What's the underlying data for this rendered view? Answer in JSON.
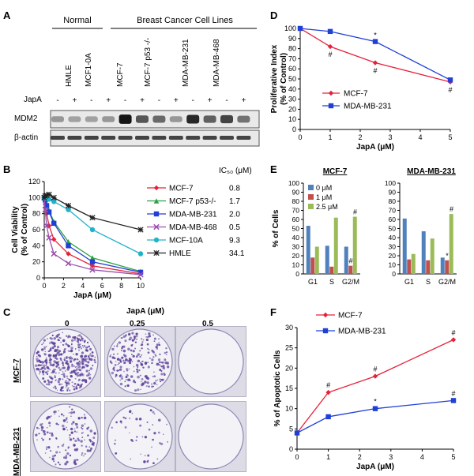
{
  "panels": {
    "A": {
      "label": "A",
      "group_normal": "Normal",
      "group_cancer": "Breast Cancer Cell Lines",
      "cell_lines": [
        "HMLE",
        "MCF1-0A",
        "MCF-7",
        "MCF-7 p53 -/-",
        "MDA-MB-231",
        "MDA-MB-468"
      ],
      "treatment_label": "JapA",
      "treatment_signs": [
        "-",
        "+",
        "-",
        "+",
        "-",
        "+",
        "-",
        "+",
        "-",
        "+",
        "-",
        "+"
      ],
      "blot_rows": [
        "MDM2",
        "β-actin"
      ],
      "mdm2_band_intensity": [
        0.25,
        0.2,
        0.2,
        0.25,
        0.95,
        0.6,
        0.5,
        0.25,
        0.85,
        0.55,
        0.7,
        0.45
      ],
      "actin_band_intensity": [
        0.7,
        0.7,
        0.7,
        0.7,
        0.7,
        0.7,
        0.7,
        0.7,
        0.7,
        0.7,
        0.7,
        0.7
      ]
    },
    "B": {
      "label": "B",
      "ic50_header": "IC₅₀ (μM)"
    },
    "C": {
      "label": "C",
      "dose_title": "JapA (μM)",
      "doses": [
        "0",
        "0.25",
        "0.5"
      ],
      "rows": [
        "MCF-7",
        "MDA-MB-231"
      ],
      "colony_density": [
        [
          1.0,
          0.55,
          0.0
        ],
        [
          0.35,
          0.12,
          0.0
        ]
      ]
    },
    "D": {
      "label": "D"
    },
    "E": {
      "label": "E",
      "ylabel": "% of Cells"
    },
    "F": {
      "label": "F"
    }
  },
  "chart_data": [
    {
      "id": "B",
      "type": "line",
      "xlabel": "JapA (μM)",
      "ylabel": "Cell Viability\n(% of Control)",
      "xlim": [
        0,
        10
      ],
      "ylim": [
        0,
        120
      ],
      "xticks": [
        0,
        2,
        4,
        6,
        8,
        10
      ],
      "yticks": [
        0,
        20,
        40,
        60,
        80,
        100,
        120
      ],
      "legend_position": "right",
      "series": [
        {
          "name": "MCF-7",
          "ic50": "0.8",
          "color": "#e6223a",
          "marker": "diamond",
          "x": [
            0,
            0.1,
            0.25,
            0.5,
            1,
            2.5,
            5,
            10
          ],
          "y": [
            100,
            92,
            80,
            65,
            48,
            30,
            15,
            5
          ]
        },
        {
          "name": "MCF-7 p53-/-",
          "ic50": "1.7",
          "color": "#2ea043",
          "marker": "triangle",
          "x": [
            0,
            0.1,
            0.25,
            0.5,
            1,
            2.5,
            5,
            10
          ],
          "y": [
            100,
            98,
            92,
            84,
            70,
            45,
            25,
            8
          ]
        },
        {
          "name": "MDA-MB-231",
          "ic50": "2.0",
          "color": "#1f3fd6",
          "marker": "square",
          "x": [
            0,
            0.1,
            0.25,
            0.5,
            1,
            2.5,
            5,
            10
          ],
          "y": [
            100,
            97,
            90,
            82,
            68,
            40,
            20,
            7
          ]
        },
        {
          "name": "MDA-MB-468",
          "ic50": "0.5",
          "color": "#9b4fb0",
          "marker": "x",
          "x": [
            0,
            0.1,
            0.25,
            0.5,
            1,
            2.5,
            5,
            10
          ],
          "y": [
            100,
            85,
            65,
            50,
            30,
            18,
            10,
            4
          ]
        },
        {
          "name": "MCF-10A",
          "ic50": "9.3",
          "color": "#22b3c9",
          "marker": "circle",
          "x": [
            0,
            0.1,
            0.25,
            0.5,
            1,
            2.5,
            5,
            10
          ],
          "y": [
            100,
            100,
            99,
            98,
            95,
            85,
            60,
            30
          ]
        },
        {
          "name": "HMLE",
          "ic50": "34.1",
          "color": "#222222",
          "marker": "star",
          "x": [
            0,
            0.1,
            0.25,
            0.5,
            1,
            2.5,
            5,
            10
          ],
          "y": [
            100,
            102,
            103,
            104,
            100,
            90,
            75,
            60
          ]
        }
      ]
    },
    {
      "id": "D",
      "type": "line",
      "xlabel": "JapA  (μM)",
      "ylabel": "Proliferative Index\n(% of Control)",
      "xlim": [
        0,
        5
      ],
      "ylim": [
        0,
        100
      ],
      "xticks": [
        0,
        1,
        2,
        3,
        4,
        5
      ],
      "yticks": [
        0,
        10,
        20,
        30,
        40,
        50,
        60,
        70,
        80,
        90,
        100
      ],
      "legend_position": "lower-left",
      "series": [
        {
          "name": "MCF-7",
          "color": "#e6223a",
          "marker": "diamond",
          "x": [
            0,
            1,
            2.5,
            5
          ],
          "y": [
            100,
            82,
            66,
            47
          ]
        },
        {
          "name": "MDA-MB-231",
          "color": "#1f3fd6",
          "marker": "square",
          "x": [
            0,
            1,
            2.5,
            5
          ],
          "y": [
            100,
            97,
            87,
            49
          ]
        }
      ],
      "annotations": [
        {
          "x": 1,
          "y": 82,
          "text": "#",
          "side": "below"
        },
        {
          "x": 2.5,
          "y": 66,
          "text": "#",
          "side": "below"
        },
        {
          "x": 2.5,
          "y": 87,
          "text": "*",
          "side": "above"
        },
        {
          "x": 5,
          "y": 47,
          "text": "#",
          "side": "below"
        }
      ]
    },
    {
      "id": "E",
      "type": "bar",
      "ylabel": "% of Cells",
      "ylim": [
        0,
        100
      ],
      "yticks": [
        0,
        10,
        20,
        30,
        40,
        50,
        60,
        70,
        80,
        90,
        100
      ],
      "categories": [
        "G1",
        "S",
        "G2/M"
      ],
      "legend_position": "top-left",
      "series_meta": [
        {
          "name": "0 μM",
          "color": "#4f81bd"
        },
        {
          "name": "1 μM",
          "color": "#c0504d"
        },
        {
          "name": "2.5 μM",
          "color": "#9bbb59"
        }
      ],
      "subcharts": [
        {
          "title": "MCF-7",
          "values": [
            [
              53,
              18,
              30
            ],
            [
              31,
              8,
              62
            ],
            [
              30,
              9,
              63
            ]
          ],
          "annotations": [
            {
              "category": 2,
              "series": 1,
              "text": "#"
            },
            {
              "category": 2,
              "series": 2,
              "text": "#"
            }
          ]
        },
        {
          "title": "MDA-MB-231",
          "values": [
            [
              61,
              16,
              22
            ],
            [
              47,
              15,
              39
            ],
            [
              18,
              15,
              66
            ]
          ],
          "annotations": [
            {
              "category": 2,
              "series": 1,
              "text": "*"
            },
            {
              "category": 2,
              "series": 2,
              "text": "#"
            }
          ]
        }
      ]
    },
    {
      "id": "F",
      "type": "line",
      "xlabel": "JapA (μM)",
      "ylabel": "% of Apoptotic Cells",
      "xlim": [
        0,
        5
      ],
      "ylim": [
        0,
        30
      ],
      "xticks": [
        0,
        1,
        2,
        3,
        4,
        5
      ],
      "yticks": [
        0,
        5,
        10,
        15,
        20,
        25,
        30
      ],
      "legend_position": "top-left",
      "series": [
        {
          "name": "MCF-7",
          "color": "#e6223a",
          "marker": "diamond",
          "x": [
            0,
            1,
            2.5,
            5
          ],
          "y": [
            4,
            14,
            18,
            27
          ]
        },
        {
          "name": "MDA-MB-231",
          "color": "#1f3fd6",
          "marker": "square",
          "x": [
            0,
            1,
            2.5,
            5
          ],
          "y": [
            4,
            8,
            10,
            12
          ]
        }
      ],
      "annotations": [
        {
          "x": 1,
          "y": 14,
          "text": "#",
          "side": "above"
        },
        {
          "x": 2.5,
          "y": 18,
          "text": "#",
          "side": "above"
        },
        {
          "x": 5,
          "y": 27,
          "text": "#",
          "side": "above"
        },
        {
          "x": 2.5,
          "y": 10,
          "text": "*",
          "side": "above"
        },
        {
          "x": 5,
          "y": 12,
          "text": "#",
          "side": "above"
        }
      ]
    }
  ]
}
